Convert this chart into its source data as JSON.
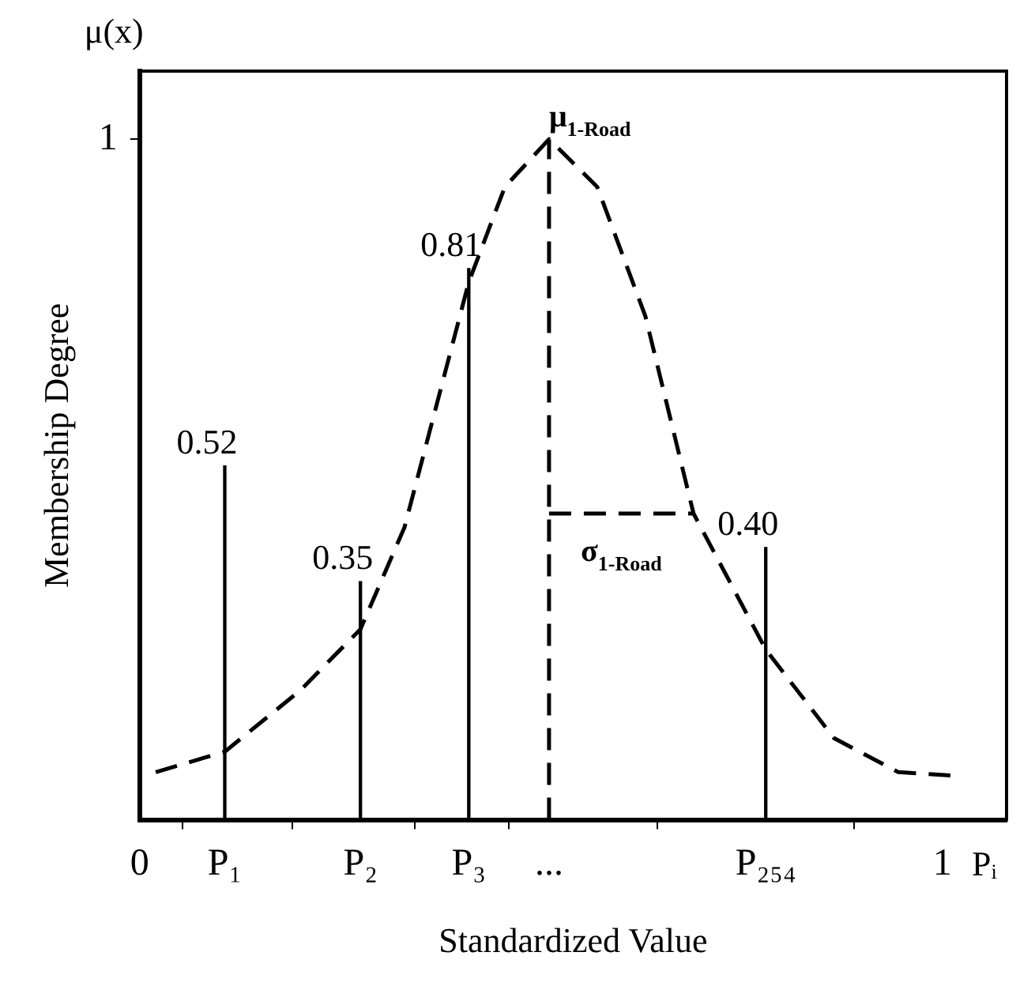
{
  "chart_data": {
    "type": "line",
    "xlabel": "Standardized Value",
    "ylabel": "Membership Degree",
    "xlim": [
      0,
      1.08
    ],
    "ylim": [
      0,
      1.1
    ],
    "xticks": [
      0,
      {
        "value": 0.106,
        "label": "P₁"
      },
      {
        "value": 0.275,
        "label": "P₂"
      },
      {
        "value": 0.41,
        "label": "P₃"
      },
      {
        "value": 0.51,
        "label": "..."
      },
      {
        "value": 0.78,
        "label": "P₂₅₄"
      },
      1
    ],
    "yticks": [
      1
    ],
    "grid": false,
    "legend": false,
    "marker": "none",
    "annotations": [
      "μ(x)",
      "Pᵢ"
    ],
    "ref_lines": [
      {
        "axis": "x",
        "value": 0.51,
        "label": "μ$_{1-Road}$",
        "line_style": "dashed",
        "color": "#000000"
      }
    ],
    "series": [
      {
        "color": "#000000",
        "line_style": "dashed",
        "x": [
          0.02,
          0.106,
          0.2,
          0.275,
          0.33,
          0.41,
          0.455,
          0.51,
          0.57,
          0.63,
          0.69,
          0.78,
          0.865,
          0.945,
          1.01
        ],
        "values": [
          0.07,
          0.1,
          0.19,
          0.28,
          0.43,
          0.79,
          0.93,
          1.0,
          0.93,
          0.74,
          0.45,
          0.25,
          0.12,
          0.07,
          0.065
        ]
      },
      {
        "name": "σ$_{1-Road}$",
        "color": "#000000",
        "line_style": "dashed",
        "x": [
          0.51,
          0.69
        ],
        "values": [
          0.45,
          0.45
        ]
      },
      {
        "type": "bar",
        "color": "#000000",
        "x": [
          0.106,
          0.275,
          0.41,
          0.78
        ],
        "values": [
          0.52,
          0.35,
          0.81,
          0.4
        ],
        "value_labels": [
          "0.52",
          "0.35",
          "0.81",
          "0.40"
        ]
      }
    ]
  }
}
